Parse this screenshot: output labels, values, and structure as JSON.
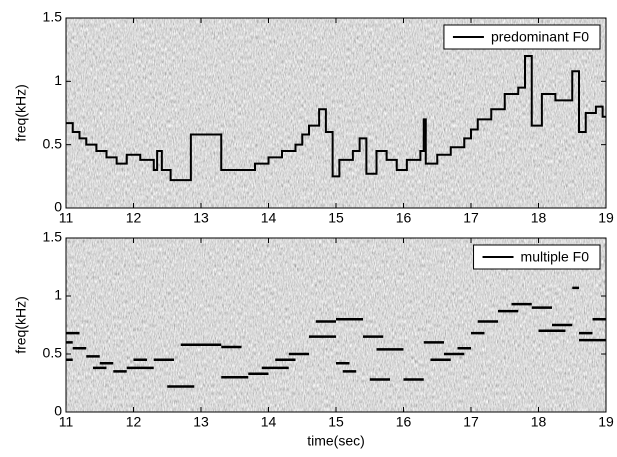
{
  "chart_data": [
    {
      "type": "line",
      "step": "post",
      "ylabel": "freq(kHz)",
      "x": [
        11.0,
        11.1,
        11.2,
        11.3,
        11.45,
        11.6,
        11.75,
        11.9,
        12.1,
        12.3,
        12.35,
        12.42,
        12.55,
        12.85,
        13.3,
        13.6,
        13.8,
        14.0,
        14.2,
        14.4,
        14.5,
        14.6,
        14.75,
        14.85,
        14.95,
        15.05,
        15.25,
        15.35,
        15.45,
        15.6,
        15.75,
        15.9,
        16.05,
        16.25,
        16.3,
        16.33,
        16.5,
        16.7,
        16.9,
        17.0,
        17.1,
        17.3,
        17.5,
        17.7,
        17.8,
        17.9,
        18.05,
        18.25,
        18.5,
        18.6,
        18.7,
        18.85,
        18.95,
        19.0
      ],
      "series": [
        {
          "name": "predominant F0",
          "color": "#000000",
          "values": [
            0.67,
            0.6,
            0.55,
            0.5,
            0.45,
            0.4,
            0.35,
            0.42,
            0.38,
            0.3,
            0.45,
            0.3,
            0.22,
            0.58,
            0.3,
            0.3,
            0.35,
            0.4,
            0.45,
            0.5,
            0.58,
            0.65,
            0.78,
            0.6,
            0.25,
            0.38,
            0.45,
            0.55,
            0.27,
            0.45,
            0.38,
            0.3,
            0.38,
            0.45,
            0.7,
            0.35,
            0.42,
            0.48,
            0.55,
            0.62,
            0.7,
            0.78,
            0.9,
            0.95,
            1.2,
            0.65,
            0.9,
            0.85,
            1.08,
            0.6,
            0.75,
            0.8,
            0.72,
            0.72
          ]
        }
      ],
      "xlim": [
        11,
        19
      ],
      "xticks": [
        11,
        12,
        13,
        14,
        15,
        16,
        17,
        18,
        19
      ],
      "ylim": [
        0,
        1.5
      ],
      "yticks": [
        0,
        0.5,
        1,
        1.5
      ],
      "legend": "upper right"
    },
    {
      "type": "line",
      "ylabel": "freq(kHz)",
      "xlabel": "time(sec)",
      "x": [
        11.0,
        11.2,
        null,
        11.0,
        11.1,
        null,
        11.0,
        11.1,
        null,
        11.1,
        11.3,
        null,
        11.3,
        11.5,
        null,
        11.4,
        11.6,
        null,
        11.5,
        11.7,
        null,
        11.7,
        11.9,
        null,
        11.9,
        12.3,
        null,
        12.0,
        12.2,
        null,
        12.3,
        12.6,
        null,
        12.5,
        12.9,
        null,
        12.7,
        13.3,
        null,
        13.3,
        13.6,
        null,
        13.3,
        13.7,
        null,
        13.7,
        14.0,
        null,
        13.9,
        14.3,
        null,
        14.1,
        14.4,
        null,
        14.3,
        14.6,
        null,
        14.6,
        15.0,
        null,
        14.7,
        15.0,
        null,
        15.0,
        15.4,
        null,
        15.0,
        15.2,
        null,
        15.1,
        15.3,
        null,
        15.4,
        15.7,
        null,
        15.5,
        15.8,
        null,
        15.6,
        16.0,
        null,
        16.0,
        16.3,
        null,
        16.3,
        16.6,
        null,
        16.4,
        16.7,
        null,
        16.6,
        16.9,
        null,
        16.8,
        17.0,
        null,
        17.0,
        17.2,
        null,
        17.1,
        17.4,
        null,
        17.4,
        17.7,
        null,
        17.6,
        17.9,
        null,
        17.9,
        18.2,
        null,
        18.0,
        18.4,
        null,
        18.2,
        18.5,
        null,
        18.5,
        18.6,
        null,
        18.6,
        18.8,
        null,
        18.8,
        19.0,
        null,
        18.6,
        19.0
      ],
      "series": [
        {
          "name": "multiple F0",
          "color": "#000000",
          "values": [
            0.68,
            0.68,
            null,
            0.6,
            0.6,
            null,
            0.45,
            0.45,
            null,
            0.55,
            0.55,
            null,
            0.48,
            0.48,
            null,
            0.38,
            0.38,
            null,
            0.42,
            0.42,
            null,
            0.35,
            0.35,
            null,
            0.38,
            0.38,
            null,
            0.45,
            0.45,
            null,
            0.45,
            0.45,
            null,
            0.22,
            0.22,
            null,
            0.58,
            0.58,
            null,
            0.56,
            0.56,
            null,
            0.3,
            0.3,
            null,
            0.33,
            0.33,
            null,
            0.38,
            0.38,
            null,
            0.45,
            0.45,
            null,
            0.5,
            0.5,
            null,
            0.65,
            0.65,
            null,
            0.78,
            0.78,
            null,
            0.8,
            0.8,
            null,
            0.42,
            0.42,
            null,
            0.35,
            0.35,
            null,
            0.65,
            0.65,
            null,
            0.28,
            0.28,
            null,
            0.54,
            0.54,
            null,
            0.28,
            0.28,
            null,
            0.6,
            0.6,
            null,
            0.45,
            0.45,
            null,
            0.5,
            0.5,
            null,
            0.55,
            0.55,
            null,
            0.68,
            0.68,
            null,
            0.78,
            0.78,
            null,
            0.87,
            0.87,
            null,
            0.93,
            0.93,
            null,
            0.9,
            0.9,
            null,
            0.7,
            0.7,
            null,
            0.75,
            0.75,
            null,
            1.07,
            1.07,
            null,
            0.68,
            0.68,
            null,
            0.8,
            0.8,
            null,
            0.62,
            0.62
          ]
        }
      ],
      "xlim": [
        11,
        19
      ],
      "xticks": [
        11,
        12,
        13,
        14,
        15,
        16,
        17,
        18,
        19
      ],
      "ylim": [
        0,
        1.5
      ],
      "yticks": [
        0,
        0.5,
        1,
        1.5
      ],
      "legend": "upper right"
    }
  ]
}
